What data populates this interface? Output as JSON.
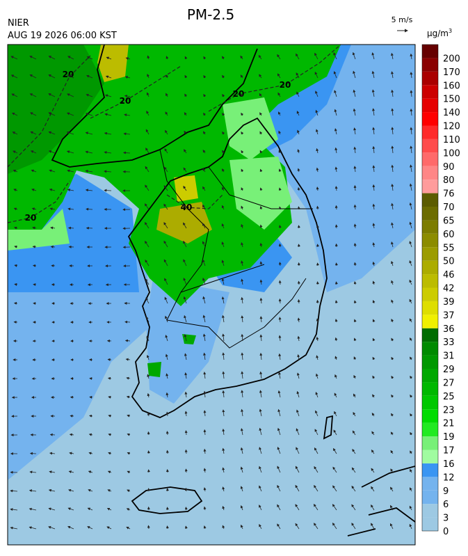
{
  "header": {
    "title": "PM-2.5",
    "agency": "NIER",
    "datetime": "AUG 19 2026 06:00 KST",
    "wind_scale": "5 m/s"
  },
  "map": {
    "contour_labels": [
      20,
      20,
      20,
      20,
      20,
      40
    ]
  },
  "colorbar": {
    "unit_base": "μg/m",
    "unit_exponent": "3",
    "levels": [
      0,
      3,
      6,
      9,
      12,
      16,
      17,
      19,
      21,
      23,
      25,
      27,
      29,
      31,
      33,
      36,
      37,
      39,
      42,
      46,
      50,
      55,
      60,
      65,
      70,
      76,
      80,
      90,
      100,
      110,
      120,
      140,
      150,
      160,
      170,
      200
    ],
    "colors": [
      "#9dc9e3",
      "#9dc9e3",
      "#74b3ee",
      "#74b3ee",
      "#3a95f2",
      "#a0fca0",
      "#78f078",
      "#22ea22",
      "#00dc00",
      "#00c800",
      "#00b800",
      "#00a800",
      "#009800",
      "#008a00",
      "#006c00",
      "#f0f000",
      "#dede00",
      "#cccc00",
      "#bcbc00",
      "#acac00",
      "#9c9c00",
      "#8c8c00",
      "#7c7c00",
      "#6c6c00",
      "#5c5c00",
      "#ff9c9c",
      "#ff8686",
      "#ff6a6a",
      "#ff4c4c",
      "#ff2a2a",
      "#ff0000",
      "#e60000",
      "#cc0000",
      "#aa0000",
      "#8a0000",
      "#660000"
    ]
  }
}
